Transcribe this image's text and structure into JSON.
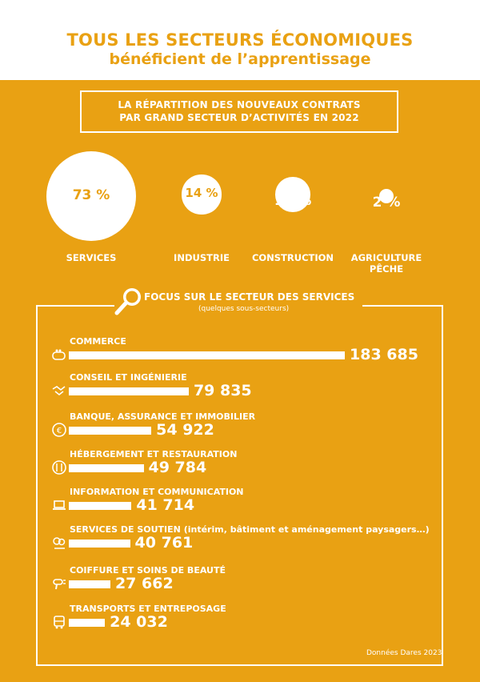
{
  "header": {
    "title_line1": "TOUS LES SECTEURS ÉCONOMIQUES",
    "title_line2": "bénéficient de l’apprentissage"
  },
  "subtitle": {
    "line1": "LA RÉPARTITION DES NOUVEAUX CONTRATS",
    "line2": "PAR GRAND SECTEUR D’ACTIVITÉS EN 2022"
  },
  "focus": {
    "title": "FOCUS SUR LE SECTEUR DES SERVICES",
    "subtitle": "(quelques sous-secteurs)"
  },
  "source": "Données Dares 2023",
  "colors": {
    "background": "#E9A113",
    "foreground": "#FFFFFF"
  },
  "icons": [
    "magnifier-icon",
    "wallet-icon",
    "handshake-icon",
    "euro-icon",
    "utensils-icon",
    "laptop-icon",
    "tree-icon",
    "hairdryer-icon",
    "bus-icon"
  ],
  "chart_data": [
    {
      "type": "bubble",
      "title": "LA RÉPARTITION DES NOUVEAUX CONTRATS PAR GRAND SECTEUR D’ACTIVITÉS EN 2022",
      "categories": [
        "SERVICES",
        "INDUSTRIE",
        "CONSTRUCTION",
        "AGRICULTURE PÊCHE"
      ],
      "values": [
        73,
        14,
        11,
        2
      ],
      "value_labels": [
        "73 %",
        "14 %",
        "11 %",
        "2 %"
      ],
      "unit": "%"
    },
    {
      "type": "bar",
      "orientation": "horizontal",
      "title": "FOCUS SUR LE SECTEUR DES SERVICES",
      "subtitle": "(quelques sous-secteurs)",
      "categories": [
        "COMMERCE",
        "CONSEIL ET INGÉNIERIE",
        "BANQUE, ASSURANCE ET IMMOBILIER",
        "HÉBERGEMENT ET RESTAURATION",
        "INFORMATION ET COMMUNICATION",
        "SERVICES DE SOUTIEN (intérim, bâtiment et aménagement paysagers…)",
        "COIFFURE ET SOINS DE BEAUTÉ",
        "TRANSPORTS ET ENTREPOSAGE"
      ],
      "values": [
        183685,
        79835,
        54922,
        49784,
        41714,
        40761,
        27662,
        24032
      ],
      "value_labels": [
        "183 685",
        "79 835",
        "54 922",
        "49 784",
        "41 714",
        "40 761",
        "27 662",
        "24 032"
      ],
      "grid": false
    }
  ]
}
